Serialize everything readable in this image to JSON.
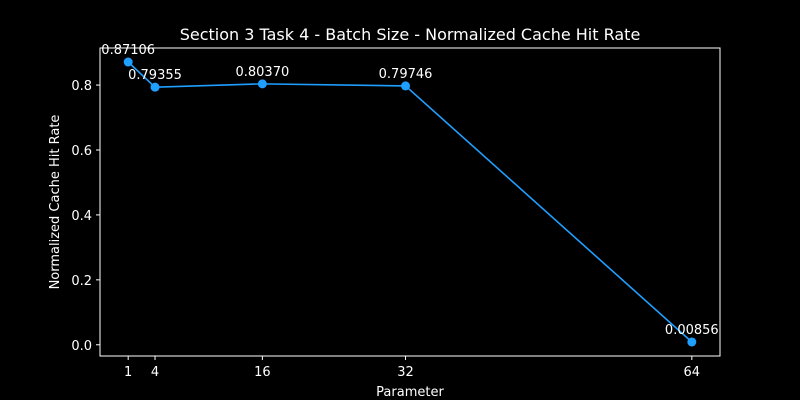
{
  "chart_data": {
    "type": "line",
    "title": "Section 3 Task 4 - Batch Size - Normalized Cache Hit Rate",
    "xlabel": "Parameter",
    "ylabel": "Normalized Cache Hit Rate",
    "x": [
      1,
      4,
      16,
      32,
      64
    ],
    "series": [
      {
        "values": [
          0.87106,
          0.79355,
          0.8037,
          0.79746,
          0.00856
        ],
        "data_labels": [
          "0.87106",
          "0.79355",
          "0.80370",
          "0.79746",
          "0.00856"
        ]
      }
    ],
    "xticks": [
      1,
      4,
      16,
      32,
      64
    ],
    "xtick_labels": [
      "1",
      "4",
      "16",
      "32",
      "64"
    ],
    "yticks": [
      0.0,
      0.2,
      0.4,
      0.6,
      0.8
    ],
    "ytick_labels": [
      "0.0",
      "0.2",
      "0.4",
      "0.6",
      "0.8"
    ],
    "xlim": [
      -2.15,
      67.15
    ],
    "ylim": [
      -0.0346,
      0.9142
    ],
    "grid": false,
    "colors": {
      "background": "#000000",
      "axes": "#ffffff",
      "line": "#1f9fff",
      "text": "#ffffff"
    }
  }
}
